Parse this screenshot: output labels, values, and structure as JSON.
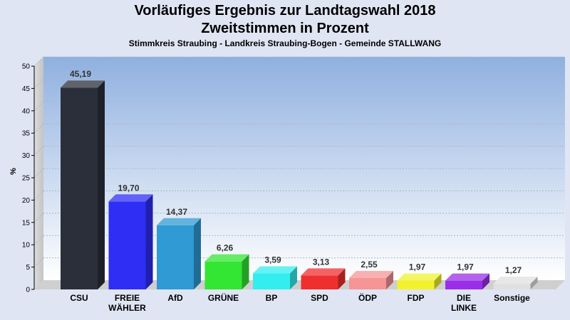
{
  "chart_data": {
    "type": "bar",
    "title": "Vorläufiges Ergebnis zur Landtagswahl 2018",
    "subtitle": "Zweitstimmen in Prozent",
    "subtitle2": "Stimmkreis Straubing - Landkreis Straubing-Bogen - Gemeinde STALLWANG",
    "ylabel": "%",
    "ylim": [
      0,
      50
    ],
    "yticks": [
      0,
      5,
      10,
      15,
      20,
      25,
      30,
      35,
      40,
      45,
      50
    ],
    "grid": true,
    "categories": [
      "CSU",
      "FREIE\nWÄHLER",
      "AfD",
      "GRÜNE",
      "BP",
      "SPD",
      "ÖDP",
      "FDP",
      "DIE\nLINKE",
      "Sonstige"
    ],
    "values": [
      45.19,
      19.7,
      14.37,
      6.26,
      3.59,
      3.13,
      2.55,
      1.97,
      1.97,
      1.27
    ],
    "value_labels": [
      "45,19",
      "19,70",
      "14,37",
      "6,26",
      "3,59",
      "3,13",
      "2,55",
      "1,97",
      "1,97",
      "1,27"
    ],
    "colors": [
      "#2b2f3a",
      "#2e2ef5",
      "#2f9ad4",
      "#33e633",
      "#33eeee",
      "#ef2f2f",
      "#f59595",
      "#f2f22c",
      "#9a2ee8",
      "#e0e0e0"
    ]
  }
}
